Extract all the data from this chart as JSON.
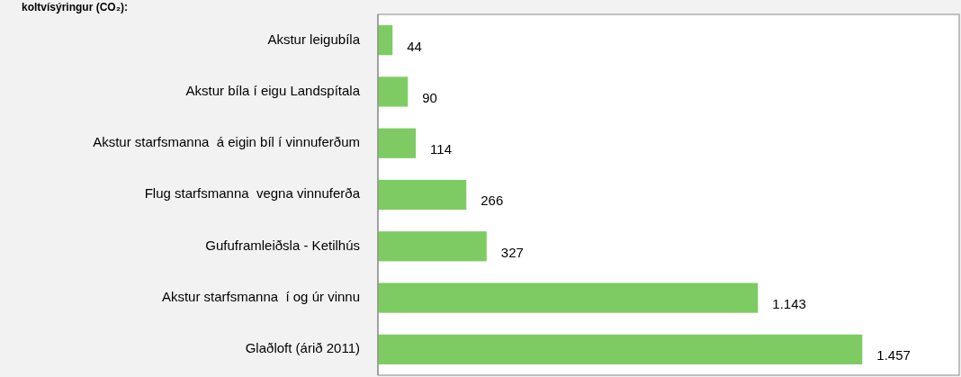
{
  "chart_data": {
    "type": "bar",
    "orientation": "horizontal",
    "title": "koltvísýringur (CO₂):",
    "categories": [
      "Akstur leigubíla",
      "Akstur bíla í eigu Landspítala",
      "Akstur starfsmanna  á eigin bíl í vinnuferðum",
      "Flug starfsmanna  vegna vinnuferða",
      "Gufuframleiðsla - Ketilhús",
      "Akstur starfsmanna  í og úr vinnu",
      "Glaðloft (árið 2011)"
    ],
    "values": [
      44,
      90,
      114,
      266,
      327,
      1143,
      1457
    ],
    "value_labels": [
      "44",
      "90",
      "114",
      "266",
      "327",
      "1.143",
      "1.457"
    ],
    "color": "#7ecb63"
  }
}
